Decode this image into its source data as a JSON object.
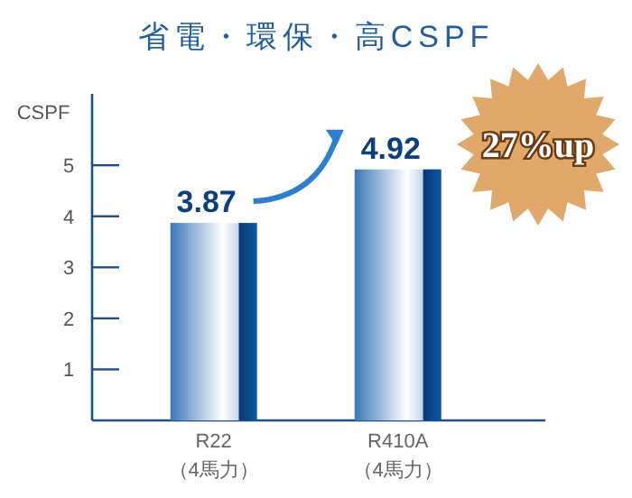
{
  "chart_data": {
    "type": "bar",
    "title": "省電・環保・高CSPF",
    "ylabel": "CSPF",
    "categories": [
      "R22\n（4馬力）",
      "R410A\n（4馬力）"
    ],
    "values": [
      3.87,
      4.92
    ],
    "color": "#3a78b5",
    "ylim": [
      0,
      6.4
    ],
    "yticks": [
      1,
      2,
      3,
      4,
      5
    ],
    "data_labels": true,
    "annotations": [
      "27%up"
    ]
  }
}
